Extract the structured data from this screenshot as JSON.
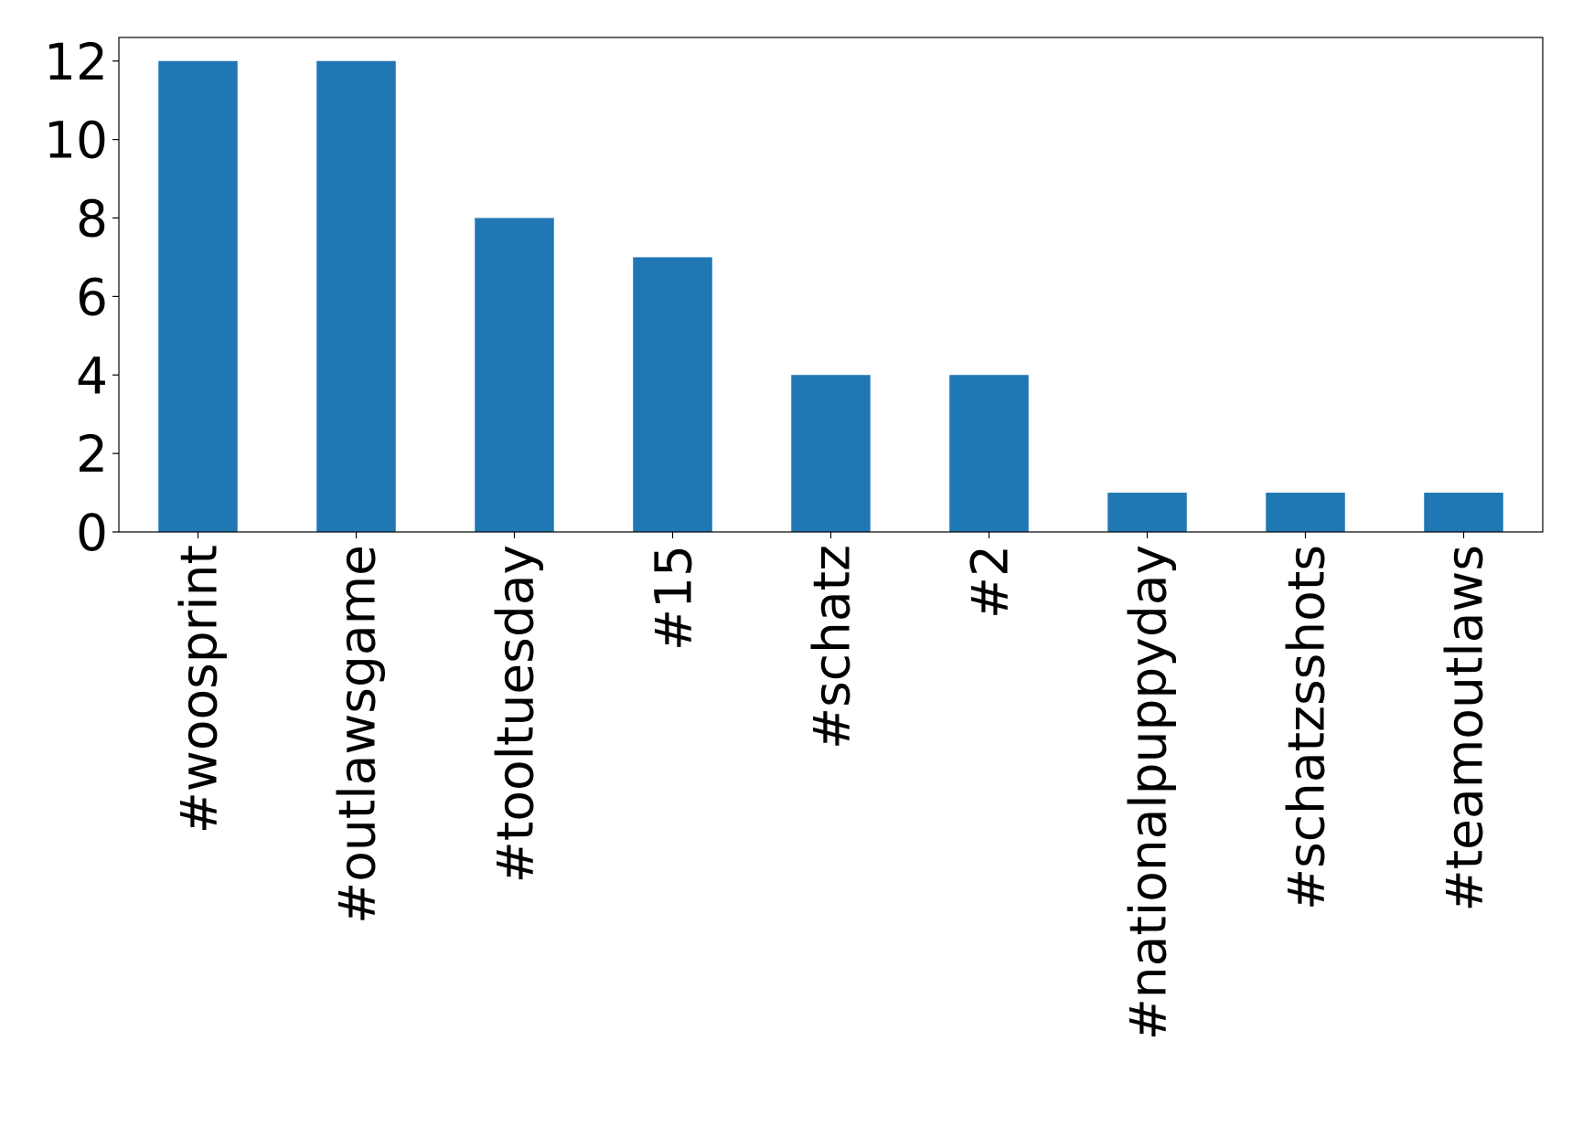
{
  "chart_data": {
    "type": "bar",
    "categories": [
      "#woosprint",
      "#outlawsgame",
      "#tooltuesday",
      "#15",
      "#schatz",
      "#2",
      "#nationalpuppyday",
      "#schatzsshots",
      "#teamoutlaws"
    ],
    "values": [
      12,
      12,
      8,
      7,
      4,
      4,
      1,
      1,
      1
    ],
    "color": "#1f77b4",
    "ylim": [
      0,
      12.6
    ],
    "yticks": [
      0,
      2,
      4,
      6,
      8,
      10,
      12
    ],
    "grid": false
  }
}
